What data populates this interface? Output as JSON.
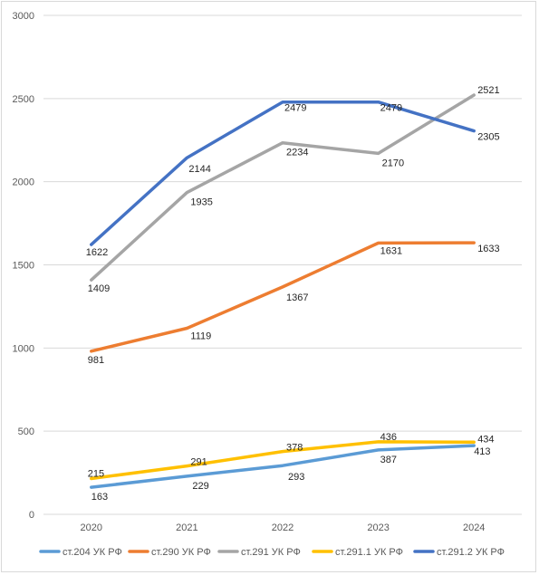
{
  "chart_data": {
    "type": "line",
    "title": "",
    "xlabel": "",
    "ylabel": "",
    "categories": [
      "2020",
      "2021",
      "2022",
      "2023",
      "2024"
    ],
    "ylim": [
      0,
      3000
    ],
    "yticks": [
      0,
      500,
      1000,
      1500,
      2000,
      2500,
      3000
    ],
    "grid": true,
    "legend_position": "bottom",
    "series": [
      {
        "name": "ст.204 УК РФ",
        "color": "#5b9bd5",
        "values": [
          163,
          229,
          293,
          387,
          413
        ]
      },
      {
        "name": "ст.290 УК РФ",
        "color": "#ed7d31",
        "values": [
          981,
          1119,
          1367,
          1631,
          1633
        ]
      },
      {
        "name": "ст.291 УК РФ",
        "color": "#a5a5a5",
        "values": [
          1409,
          1935,
          2234,
          2170,
          2521
        ]
      },
      {
        "name": "ст.291.1 УК РФ",
        "color": "#ffc000",
        "values": [
          215,
          291,
          378,
          436,
          434
        ]
      },
      {
        "name": "ст.291.2 УК РФ",
        "color": "#4472c4",
        "values": [
          1622,
          2144,
          2479,
          2479,
          2305
        ]
      }
    ]
  }
}
